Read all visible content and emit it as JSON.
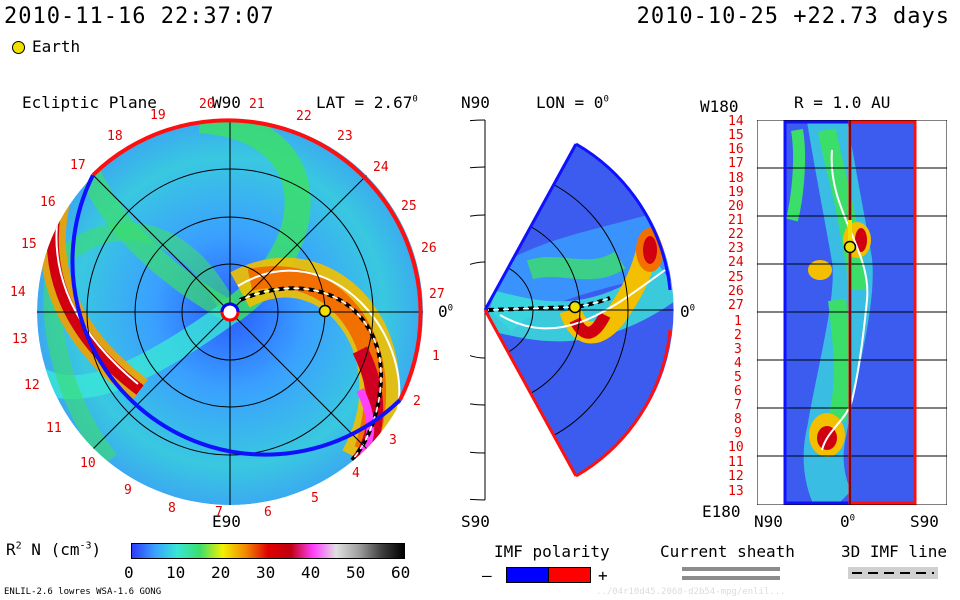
{
  "header": {
    "datetime": "2010-11-16 22:37:07",
    "model_time": "2010-10-25 +22.73 days",
    "earth_legend": "Earth"
  },
  "panel_ecliptic": {
    "title": "Ecliptic Plane",
    "top_label": "W90",
    "lat_label": "LAT = 2.67",
    "lat_sup": "0",
    "bottom_label": "E90",
    "right_label": "0",
    "right_sup": "0",
    "carrington_labels": [
      "20",
      "21",
      "22",
      "23",
      "24",
      "25",
      "26",
      "27",
      "1",
      "2",
      "3",
      "4",
      "5",
      "6",
      "7",
      "8",
      "9",
      "10",
      "11",
      "12",
      "13",
      "14",
      "15",
      "16",
      "17",
      "18",
      "19"
    ]
  },
  "panel_meridional": {
    "top_label": "N90",
    "lon_label": "LON = 0",
    "lon_sup": "0",
    "bottom_label": "S90",
    "right_label": "0",
    "right_sup": "0"
  },
  "panel_radial": {
    "top_left_label": "W180",
    "r_label": "R = 1.0 AU",
    "bottom_left_label": "E180",
    "x_labels": [
      "N90",
      "0",
      "S90"
    ],
    "x_sup": "0",
    "y_labels": [
      "14",
      "15",
      "16",
      "17",
      "18",
      "19",
      "20",
      "21",
      "22",
      "23",
      "24",
      "25",
      "26",
      "27",
      "1",
      "2",
      "3",
      "4",
      "5",
      "6",
      "7",
      "8",
      "9",
      "10",
      "11",
      "12",
      "13"
    ]
  },
  "colorbar": {
    "label": "R",
    "label_sup": "2",
    "label_rest": " N (cm",
    "label_exp": "-3",
    "label_close": ")",
    "ticks": [
      "0",
      "10",
      "20",
      "30",
      "40",
      "50",
      "60"
    ],
    "colors": [
      "#2c3cff",
      "#3aa0ff",
      "#39e6d7",
      "#3cde6a",
      "#f2f200",
      "#f28a00",
      "#e00000",
      "#c00010",
      "#ff40ff",
      "#e0e0e0",
      "#a0a0a0",
      "#404040",
      "#000000"
    ]
  },
  "legend_imf": {
    "title": "IMF polarity",
    "minus": "–",
    "plus": "+",
    "neg_color": "#0000ff",
    "pos_color": "#ff0000"
  },
  "legend_sheath": {
    "title": "Current sheath"
  },
  "legend_3d": {
    "title": "3D IMF line"
  },
  "footer": {
    "model_info": "ENLIL-2.6 lowres WSA-1.6 GONG",
    "watermark": "../04r10d45.2068-d2b54-mpg/enlil..."
  }
}
